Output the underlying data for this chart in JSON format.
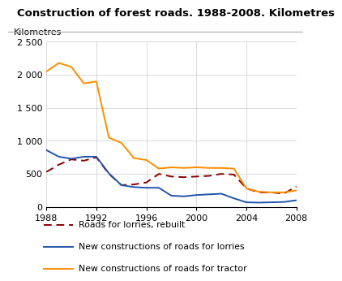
{
  "title": "Construction of forest roads. 1988-2008. Kilometres",
  "ylabel": "Kilometres",
  "years": [
    1988,
    1989,
    1990,
    1991,
    1992,
    1993,
    1994,
    1995,
    1996,
    1997,
    1998,
    1999,
    2000,
    2001,
    2002,
    2003,
    2004,
    2005,
    2006,
    2007,
    2008
  ],
  "roads_lorries_rebuilt": [
    530,
    640,
    720,
    700,
    750,
    500,
    330,
    340,
    370,
    500,
    460,
    450,
    460,
    470,
    500,
    490,
    280,
    220,
    220,
    200,
    310
  ],
  "new_roads_lorries": [
    860,
    760,
    730,
    760,
    760,
    510,
    330,
    300,
    290,
    290,
    170,
    160,
    180,
    190,
    200,
    130,
    70,
    65,
    70,
    75,
    100
  ],
  "new_roads_tractor": [
    2050,
    2180,
    2120,
    1870,
    1900,
    1050,
    970,
    740,
    710,
    580,
    600,
    590,
    600,
    590,
    590,
    580,
    280,
    230,
    220,
    220,
    250
  ],
  "color_lorries_rebuilt": "#8B0000",
  "color_new_lorries": "#2255AA",
  "color_new_tractor": "#FF8C00",
  "ylim": [
    0,
    2500
  ],
  "yticks": [
    0,
    500,
    1000,
    1500,
    2000,
    2500
  ],
  "ytick_labels": [
    "0",
    "500",
    "1 000",
    "1 500",
    "2 000",
    "2 500"
  ],
  "xticks": [
    1988,
    1992,
    1996,
    2000,
    2004,
    2008
  ],
  "legend_labels": [
    "Roads for lorries, rebuilt",
    "New constructions of roads for lorries",
    "New constructions of roads for tractor"
  ],
  "background_color": "#ffffff",
  "grid_color": "#cccccc",
  "title_fontsize": 9.5,
  "tick_fontsize": 8,
  "legend_fontsize": 7.8
}
